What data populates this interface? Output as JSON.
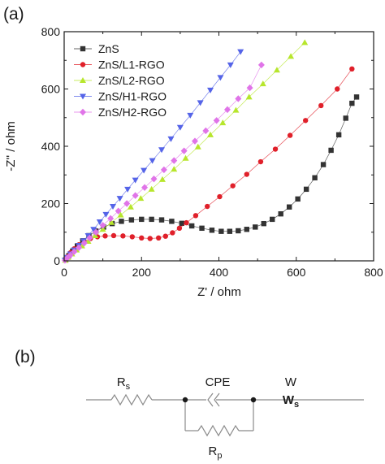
{
  "panels": {
    "a": "(a)",
    "b": "(b)"
  },
  "chart_data": {
    "type": "scatter",
    "xlabel": "Z' / ohm",
    "ylabel": "-Z'' / ohm",
    "xlim": [
      0,
      800
    ],
    "ylim": [
      0,
      800
    ],
    "xticks": [
      0,
      200,
      400,
      600,
      800
    ],
    "yticks": [
      0,
      200,
      400,
      600,
      800
    ],
    "grid": false,
    "legend_position": "top-left",
    "series": [
      {
        "name": "ZnS",
        "color": "#333333",
        "marker": "square",
        "x": [
          4,
          12,
          22,
          34,
          48,
          64,
          82,
          102,
          124,
          148,
          174,
          200,
          226,
          252,
          278,
          304,
          330,
          356,
          382,
          406,
          428,
          450,
          472,
          494,
          516,
          538,
          560,
          582,
          604,
          626,
          648,
          670,
          690,
          710,
          728,
          744,
          756
        ],
        "y": [
          3,
          18,
          34,
          52,
          70,
          88,
          104,
          118,
          130,
          138,
          143,
          145,
          145,
          143,
          138,
          131,
          122,
          114,
          107,
          103,
          103,
          105,
          110,
          118,
          130,
          145,
          164,
          188,
          216,
          250,
          290,
          336,
          386,
          440,
          498,
          550,
          572
        ]
      },
      {
        "name": "ZnS/L1-RGO",
        "color": "#e0202a",
        "marker": "circle",
        "x": [
          3,
          8,
          16,
          26,
          38,
          52,
          68,
          86,
          106,
          128,
          152,
          176,
          200,
          222,
          244,
          262,
          280,
          298,
          316,
          340,
          370,
          402,
          436,
          472,
          508,
          546,
          584,
          624,
          664,
          706,
          744
        ],
        "y": [
          3,
          14,
          28,
          42,
          56,
          68,
          78,
          84,
          87,
          88,
          87,
          84,
          80,
          78,
          80,
          86,
          98,
          114,
          133,
          158,
          190,
          224,
          262,
          302,
          346,
          390,
          438,
          490,
          542,
          600,
          670
        ]
      },
      {
        "name": "ZnS/L2-RGO",
        "color": "#b7e62c",
        "marker": "triangle-up",
        "x": [
          3,
          10,
          20,
          32,
          46,
          62,
          80,
          100,
          122,
          146,
          172,
          198,
          226,
          254,
          284,
          314,
          346,
          378,
          410,
          444,
          478,
          514,
          550,
          586,
          622
        ],
        "y": [
          2,
          12,
          24,
          38,
          52,
          68,
          88,
          110,
          134,
          160,
          188,
          218,
          250,
          284,
          320,
          358,
          398,
          440,
          482,
          526,
          572,
          618,
          666,
          714,
          762
        ]
      },
      {
        "name": "ZnS/H1-RGO",
        "color": "#5564e8",
        "marker": "triangle-down",
        "x": [
          2,
          8,
          16,
          26,
          38,
          50,
          62,
          76,
          92,
          108,
          126,
          144,
          164,
          184,
          206,
          228,
          252,
          276,
          300,
          326,
          352,
          378,
          404,
          430,
          456
        ],
        "y": [
          2,
          12,
          24,
          38,
          54,
          70,
          88,
          110,
          136,
          162,
          190,
          218,
          250,
          282,
          316,
          350,
          388,
          426,
          466,
          508,
          552,
          596,
          640,
          684,
          730
        ]
      },
      {
        "name": "ZnS/H2-RGO",
        "color": "#e074e8",
        "marker": "diamond",
        "x": [
          2,
          8,
          16,
          26,
          38,
          52,
          66,
          82,
          100,
          120,
          140,
          162,
          184,
          208,
          232,
          258,
          284,
          310,
          338,
          366,
          394,
          422,
          450,
          480,
          510
        ],
        "y": [
          2,
          10,
          20,
          32,
          46,
          62,
          80,
          100,
          124,
          148,
          174,
          200,
          228,
          256,
          286,
          318,
          350,
          384,
          418,
          454,
          490,
          528,
          566,
          604,
          684
        ]
      }
    ]
  },
  "circuit": {
    "labels": {
      "rs": {
        "main": "R",
        "sub": "s"
      },
      "cpe": "CPE",
      "w": "W",
      "ws": {
        "main": "W",
        "sub": "s"
      },
      "rp": {
        "main": "R",
        "sub": "p"
      }
    }
  }
}
